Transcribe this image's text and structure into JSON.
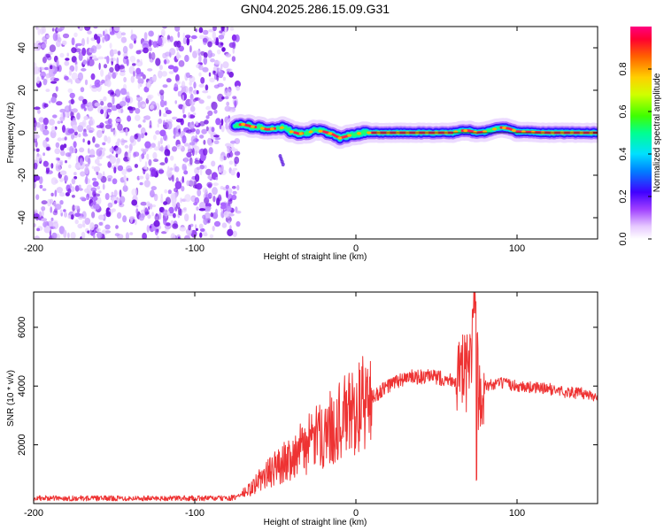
{
  "title": "GN04.2025.286.15.09.G31",
  "chart_data": [
    {
      "type": "heatmap",
      "name": "spectrogram",
      "xlabel": "Height of straight line (km)",
      "ylabel": "Frequency (Hz)",
      "xlim": [
        -200,
        150
      ],
      "ylim": [
        -50,
        50
      ],
      "x_ticks": [
        -200,
        -100,
        0,
        100
      ],
      "y_ticks": [
        -40,
        -20,
        0,
        20,
        40
      ],
      "noise_region_x": [
        -200,
        -75
      ],
      "signal_onset_x": -75,
      "signal_track": {
        "x": [
          -75,
          -70,
          -65,
          -60,
          -55,
          -50,
          -45,
          -40,
          -35,
          -30,
          -25,
          -20,
          -15,
          -10,
          -5,
          0,
          5,
          10,
          20,
          40,
          60,
          65,
          70,
          75,
          80,
          85,
          90,
          95,
          100,
          120,
          150
        ],
        "freq": [
          3.5,
          4,
          3,
          2.5,
          1.5,
          2,
          2.5,
          0.5,
          -0.5,
          0,
          1,
          0.5,
          -0.5,
          -2.5,
          -1.5,
          -0.5,
          0,
          0,
          0,
          0,
          0,
          1,
          1,
          0,
          0.5,
          1.5,
          2.5,
          2,
          0.5,
          0,
          0
        ]
      },
      "colorbar": {
        "label": "Normalized spectral amplitude",
        "range": [
          0.0,
          1.0
        ],
        "ticks": [
          "0.0",
          "0.2",
          "0.4",
          "0.6",
          "0.8"
        ]
      }
    },
    {
      "type": "line",
      "name": "snr",
      "xlabel": "Height of straight line (km)",
      "ylabel": "SNR (10 * v/v)",
      "xlim": [
        -200,
        150
      ],
      "ylim": [
        0,
        7200
      ],
      "x_ticks": [
        -200,
        -100,
        0,
        100
      ],
      "y_ticks": [
        2000,
        4000,
        6000
      ],
      "color": "#ee3333",
      "series": {
        "name": "SNR",
        "x": [
          -200,
          -150,
          -100,
          -80,
          -75,
          -70,
          -65,
          -60,
          -55,
          -50,
          -45,
          -40,
          -35,
          -30,
          -25,
          -20,
          -15,
          -10,
          -5,
          0,
          5,
          10,
          15,
          20,
          25,
          30,
          35,
          40,
          45,
          50,
          55,
          60,
          65,
          70,
          72,
          74,
          76,
          78,
          80,
          90,
          100,
          110,
          120,
          130,
          140,
          150
        ],
        "y": [
          180,
          180,
          180,
          180,
          200,
          350,
          500,
          800,
          1000,
          1200,
          1400,
          1600,
          1800,
          2000,
          2200,
          2400,
          2600,
          2800,
          3000,
          3200,
          3400,
          3600,
          3800,
          4000,
          4150,
          4250,
          4300,
          4300,
          4300,
          4300,
          4250,
          4200,
          4300,
          4500,
          5200,
          6800,
          3800,
          4100,
          4000,
          4100,
          4000,
          3950,
          3900,
          3800,
          3750,
          3650
        ]
      }
    }
  ]
}
